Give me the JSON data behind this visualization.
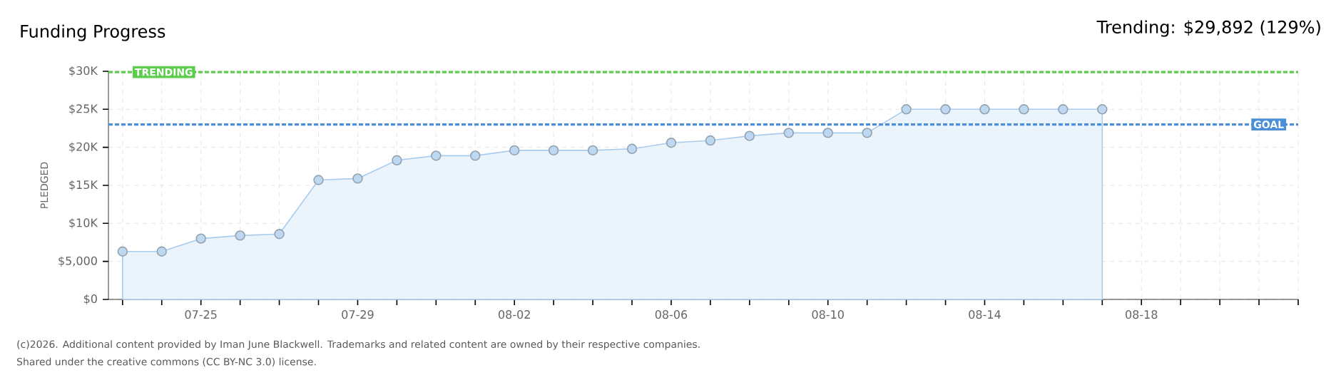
{
  "chart_data": {
    "type": "area",
    "title": "Funding Progress",
    "subtitle": "Trending: $29,892 (129%)",
    "ylabel": "PLEDGED",
    "categories": [
      null,
      null,
      "07-25",
      null,
      null,
      null,
      "07-29",
      null,
      null,
      null,
      "08-02",
      null,
      null,
      null,
      "08-06",
      null,
      null,
      null,
      "08-10",
      null,
      null,
      null,
      "08-14",
      null,
      null,
      null,
      "08-18",
      null,
      null,
      null,
      null
    ],
    "series": [
      {
        "color": "#a9cbee",
        "values": [
          6300,
          6300,
          8000,
          8400,
          8600,
          15700,
          15900,
          18300,
          18900,
          18900,
          19600,
          19600,
          19600,
          19800,
          20600,
          20900,
          21500,
          21900,
          21900,
          21900,
          25000,
          25000,
          25000,
          25000,
          25000,
          25000,
          null,
          null,
          null,
          null,
          null
        ]
      }
    ],
    "ylim": [
      0,
      30000
    ],
    "yticks": [
      {
        "value": 0,
        "label": "$0"
      },
      {
        "value": 5000,
        "label": "$5,000"
      },
      {
        "value": 10000,
        "label": "$10K"
      },
      {
        "value": 15000,
        "label": "$15K"
      },
      {
        "value": 20000,
        "label": "$20K"
      },
      {
        "value": 25000,
        "label": "$25K"
      },
      {
        "value": 30000,
        "label": "$30K"
      }
    ],
    "ref_lines": [
      {
        "axis": "y",
        "value": 29892,
        "label": "TRENDING",
        "color": "#5ccc4c",
        "line_style": "dashed"
      },
      {
        "axis": "y",
        "value": 23000,
        "label": "GOAL",
        "color": "#4a8fd8",
        "line_style": "dashed"
      }
    ],
    "grid": true,
    "marker": "circle",
    "annotations": [
      "(c)2026. Additional content provided by Iman June Blackwell. Trademarks and related content are owned by their respective companies.",
      "Shared under the creative commons (CC BY-NC 3.0) license."
    ]
  }
}
